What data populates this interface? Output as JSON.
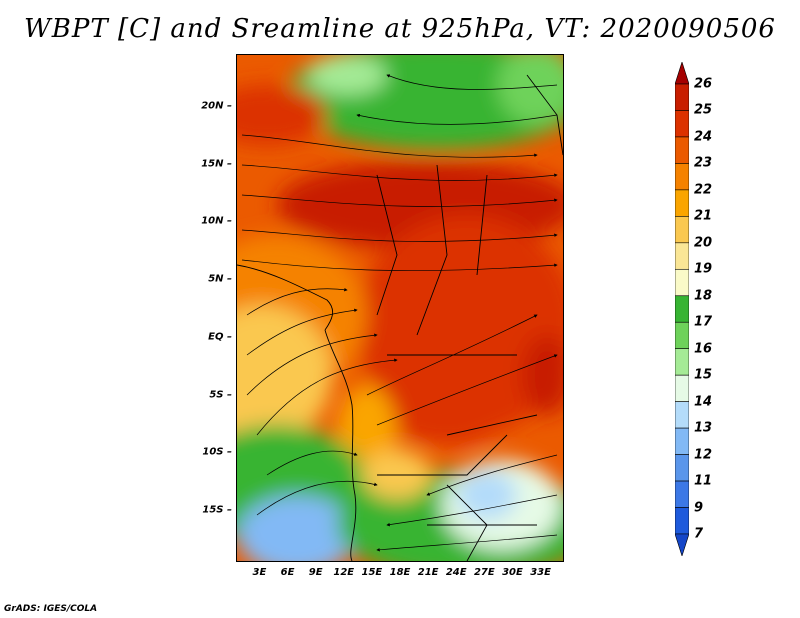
{
  "title": "WBPT [C] and Sreamline at 925hPa, VT: 2020090506",
  "credit": "GrADS: IGES/COLA",
  "map": {
    "lat_labels": [
      "20N",
      "15N",
      "10N",
      "5N",
      "EQ",
      "5S",
      "10S",
      "15S"
    ],
    "lat_values": [
      20,
      15,
      10,
      5,
      0,
      -5,
      -10,
      -15
    ],
    "lon_labels": [
      "3E",
      "6E",
      "9E",
      "12E",
      "15E",
      "18E",
      "21E",
      "24E",
      "27E",
      "30E",
      "33E"
    ],
    "lon_values": [
      3,
      6,
      9,
      12,
      15,
      18,
      21,
      24,
      27,
      30,
      33
    ],
    "lat_range": [
      -19.5,
      24.5
    ],
    "lon_range": [
      0.5,
      35.5
    ]
  },
  "colorbar": {
    "labels": [
      "26",
      "25",
      "24",
      "23",
      "22",
      "21",
      "20",
      "19",
      "18",
      "17",
      "16",
      "15",
      "14",
      "13",
      "12",
      "11",
      "9",
      "7"
    ],
    "colors": [
      "#a50000",
      "#c81e00",
      "#dc3200",
      "#eb5a00",
      "#f58200",
      "#faa500",
      "#fac850",
      "#fae696",
      "#fafac8",
      "#37b432",
      "#6ed25a",
      "#a5eb96",
      "#e6fae6",
      "#b4dcfa",
      "#82b9f5",
      "#5a96eb",
      "#3c78e6",
      "#1e5adc",
      "#1446c8"
    ]
  }
}
